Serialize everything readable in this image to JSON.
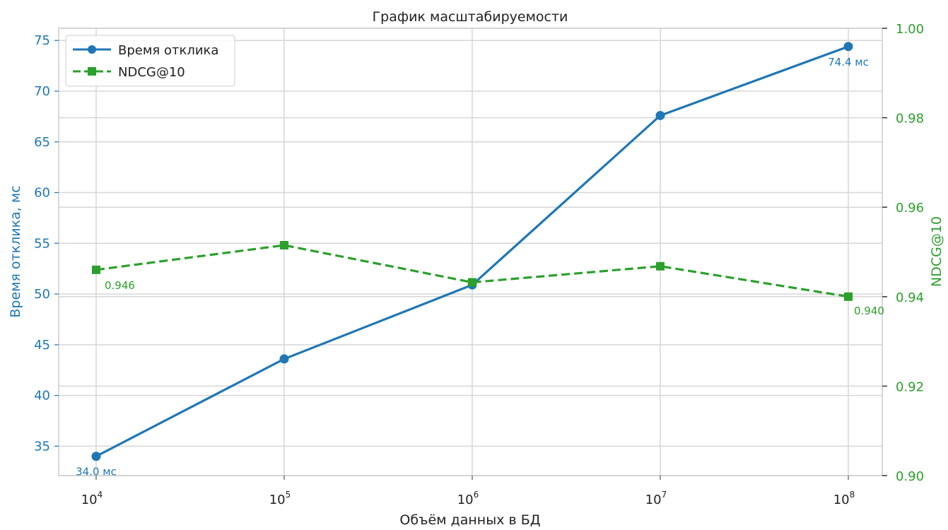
{
  "chart_data": {
    "type": "line",
    "title": "График масштабируемости",
    "xlabel": "Объём данных в БД",
    "x_scale": "log",
    "x": [
      10000,
      100000,
      1000000,
      10000000,
      100000000
    ],
    "x_ticks": [
      {
        "base": "10",
        "exp": "4"
      },
      {
        "base": "10",
        "exp": "5"
      },
      {
        "base": "10",
        "exp": "6"
      },
      {
        "base": "10",
        "exp": "7"
      },
      {
        "base": "10",
        "exp": "8"
      }
    ],
    "y_left": {
      "label": "Время отклика, мс",
      "ylim": [
        32.1,
        76.2
      ],
      "ticks": [
        35,
        40,
        45,
        50,
        55,
        60,
        65,
        70,
        75
      ],
      "tick_labels": [
        "35",
        "40",
        "45",
        "50",
        "55",
        "60",
        "65",
        "70",
        "75"
      ],
      "color": "#1f77b4"
    },
    "y_right": {
      "label": "NDCG@10",
      "ylim": [
        0.9,
        1.0
      ],
      "ticks": [
        0.9,
        0.92,
        0.94,
        0.96,
        0.98,
        1.0
      ],
      "tick_labels": [
        "0.90",
        "0.92",
        "0.94",
        "0.96",
        "0.98",
        "1.00"
      ],
      "color": "#2ca02c"
    },
    "grid": true,
    "legend_position": "top-left",
    "series": [
      {
        "name": "Время отклика",
        "axis": "left",
        "color": "#1f77b4",
        "style": "solid",
        "marker": "circle",
        "values": [
          34.0,
          43.6,
          50.9,
          67.6,
          74.4
        ]
      },
      {
        "name": "NDCG@10",
        "axis": "right",
        "color": "#2ca02c",
        "style": "dashed",
        "marker": "square",
        "values": [
          0.946,
          0.9515,
          0.9432,
          0.9468,
          0.94
        ]
      }
    ],
    "annotations": [
      {
        "text": "34.0 мс",
        "series": 0,
        "index": 0
      },
      {
        "text": "74.4 мс",
        "series": 0,
        "index": 4
      },
      {
        "text": "0.946",
        "series": 1,
        "index": 0
      },
      {
        "text": "0.940",
        "series": 1,
        "index": 4
      }
    ]
  }
}
